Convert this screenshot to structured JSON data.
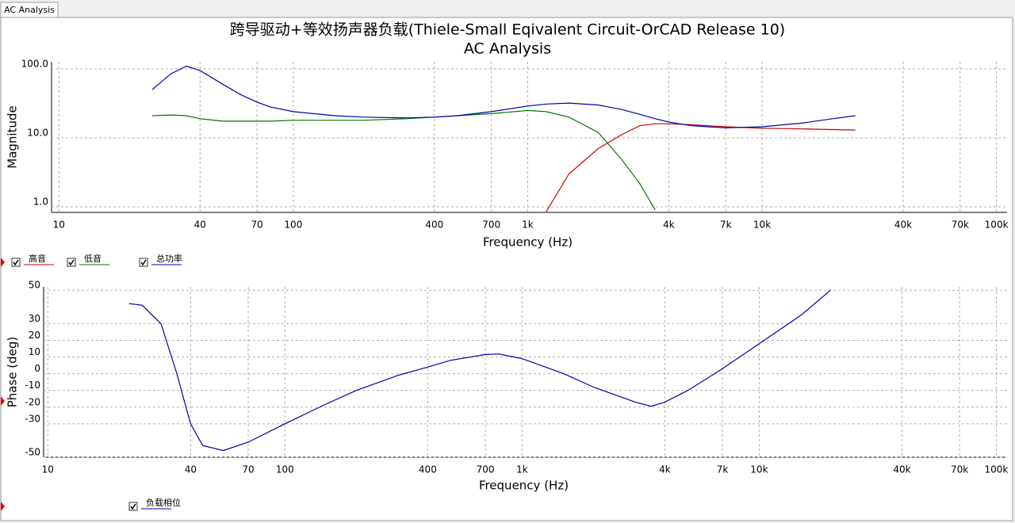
{
  "tab": "AC Analysis",
  "chart_data": [
    {
      "type": "line",
      "title": "跨导驱动+等效扬声器负载(Thiele-Small Eqivalent Circuit-OrCAD Release 10)",
      "subtitle": "AC Analysis",
      "x_label": "Frequency (Hz)",
      "y_label": "Magnitude",
      "xscale": "log",
      "yscale": "log",
      "grid": true,
      "xlim": [
        9.3,
        111000
      ],
      "ylim": [
        0.83,
        127
      ],
      "xticks": [
        10,
        40,
        70,
        100,
        400,
        700,
        {
          "value": 1000,
          "label": "1k"
        },
        {
          "value": 4000,
          "label": "4k"
        },
        {
          "value": 7000,
          "label": "7k"
        },
        {
          "value": 10000,
          "label": "10k"
        },
        {
          "value": 40000,
          "label": "40k"
        },
        {
          "value": 70000,
          "label": "70k"
        },
        {
          "value": 100000,
          "label": "100k"
        }
      ],
      "yticks": [
        {
          "value": 1,
          "label": "1.0"
        },
        {
          "value": 10,
          "label": "10.0"
        },
        {
          "value": 100,
          "label": "100.0"
        }
      ],
      "x": [
        25,
        30,
        35,
        40,
        50,
        60,
        70,
        80,
        100,
        150,
        200,
        300,
        400,
        500,
        700,
        1000,
        1200,
        1500,
        2000,
        2500,
        3000,
        3500,
        4000,
        5000,
        7000,
        10000,
        15000,
        20000,
        25000
      ],
      "series": [
        {
          "name": "高音",
          "color": "#cc0000",
          "values": [
            null,
            null,
            null,
            null,
            null,
            null,
            null,
            null,
            null,
            null,
            null,
            null,
            null,
            null,
            null,
            null,
            0.85,
            3,
            7,
            11,
            15,
            16,
            16,
            15.5,
            14.5,
            13.8,
            13.5,
            13.2,
            13
          ]
        },
        {
          "name": "低音",
          "color": "#007700",
          "values": [
            21,
            21.5,
            21,
            19,
            17.5,
            17.5,
            17.5,
            17.5,
            18,
            18,
            18,
            19,
            20,
            21,
            22.5,
            25,
            24,
            20,
            12,
            5,
            2.2,
            0.9,
            null,
            null,
            null,
            null,
            null,
            null,
            null
          ]
        },
        {
          "name": "总功率",
          "color": "#0000aa",
          "values": [
            50,
            85,
            110,
            95,
            60,
            42,
            33,
            28,
            24,
            21,
            20,
            19.5,
            20,
            21,
            24,
            29,
            31,
            32,
            30,
            26,
            22,
            19,
            17,
            15,
            14,
            14.5,
            16.5,
            19,
            21
          ]
        }
      ]
    },
    {
      "type": "line",
      "x_label": "Frequency (Hz)",
      "y_label": "Phase (deg)",
      "xscale": "log",
      "grid": true,
      "xlim": [
        9.6,
        111000
      ],
      "ylim": [
        -50,
        52
      ],
      "xticks": [
        10,
        40,
        70,
        100,
        400,
        700,
        {
          "value": 1000,
          "label": "1k"
        },
        {
          "value": 4000,
          "label": "4k"
        },
        {
          "value": 7000,
          "label": "7k"
        },
        {
          "value": 10000,
          "label": "10k"
        },
        {
          "value": 40000,
          "label": "40k"
        },
        {
          "value": 70000,
          "label": "70k"
        },
        {
          "value": 100000,
          "label": "100k"
        }
      ],
      "yticks": [
        50,
        30,
        20,
        10,
        0,
        -10,
        -20,
        -30,
        -50
      ],
      "x": [
        22,
        25,
        30,
        35,
        40,
        45,
        55,
        70,
        100,
        150,
        200,
        300,
        400,
        500,
        700,
        800,
        1000,
        1500,
        2000,
        3000,
        3500,
        4000,
        5000,
        7000,
        10000,
        15000,
        20000
      ],
      "series": [
        {
          "name": "负载相位",
          "color": "#0000aa",
          "values": [
            42,
            41,
            30,
            0,
            -30,
            -43,
            -46,
            -41,
            -30,
            -18,
            -10,
            -1,
            4,
            8,
            11.5,
            11.8,
            9,
            0,
            -8,
            -17,
            -19.5,
            -17,
            -10,
            3,
            18,
            35,
            50
          ]
        }
      ]
    }
  ]
}
